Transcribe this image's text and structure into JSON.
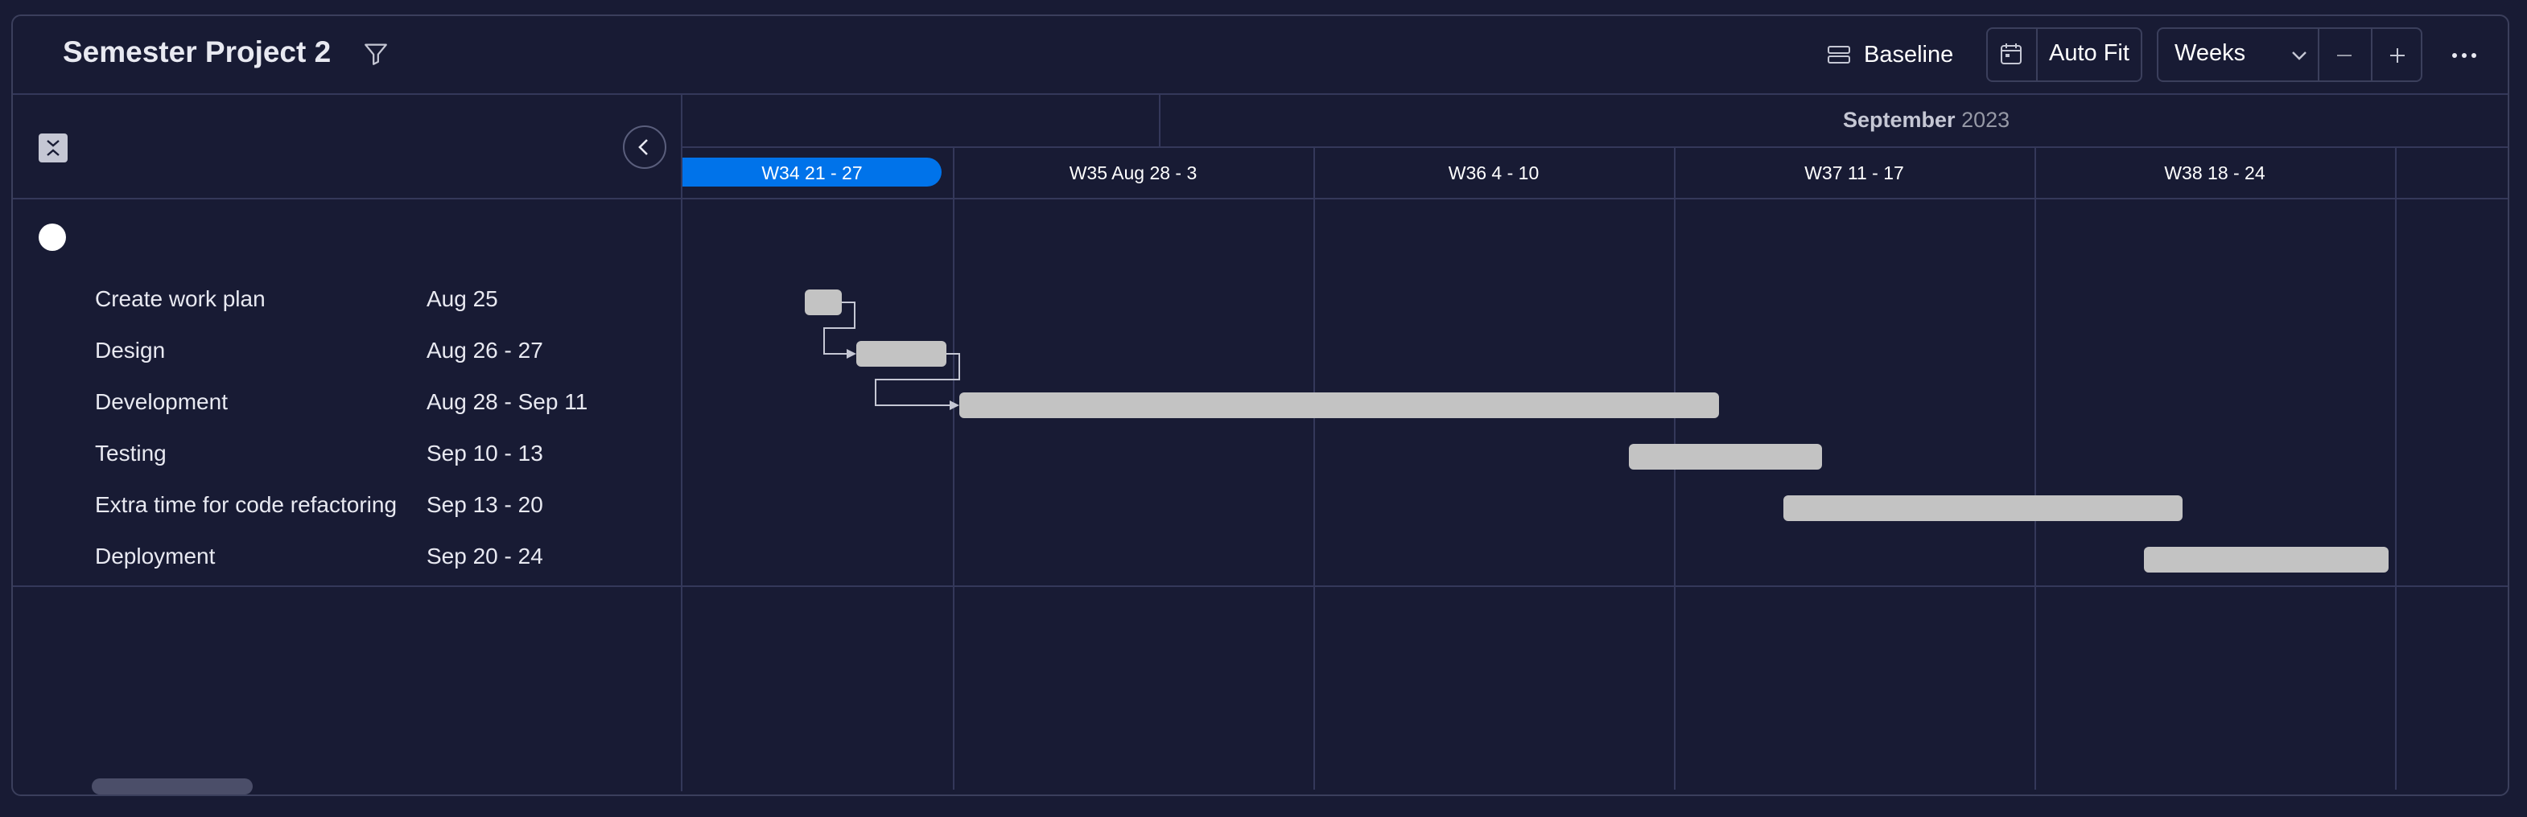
{
  "header": {
    "title": "Semester Project 2",
    "baseline_label": "Baseline",
    "autofit_label": "Auto Fit",
    "zoom_select": "Weeks"
  },
  "timeline": {
    "month": "September",
    "year": "2023",
    "weeks": [
      "W34 21 - 27",
      "W35 Aug 28 - 3",
      "W36 4 - 10",
      "W37 11 - 17",
      "W38 18 - 24"
    ],
    "current_week_index": 0
  },
  "tasks": [
    {
      "name": "Create work plan",
      "dates": "Aug 25"
    },
    {
      "name": "Design",
      "dates": "Aug 26 - 27"
    },
    {
      "name": "Development",
      "dates": "Aug 28 - Sep 11"
    },
    {
      "name": "Testing",
      "dates": "Sep 10 - 13"
    },
    {
      "name": "Extra time for code refactoring",
      "dates": "Sep 13 - 20"
    },
    {
      "name": "Deployment",
      "dates": "Sep 20 - 24"
    }
  ],
  "colors": {
    "background": "#181b34",
    "current_week": "#0073ea",
    "task_bar": "#c3c3c3",
    "grid": "#34385a"
  },
  "icons": [
    "filter-icon",
    "baseline-icon",
    "calendar-icon",
    "chevron-down-icon",
    "minus-icon",
    "plus-icon",
    "more-icon",
    "collapse-icon",
    "chevron-left-icon"
  ]
}
